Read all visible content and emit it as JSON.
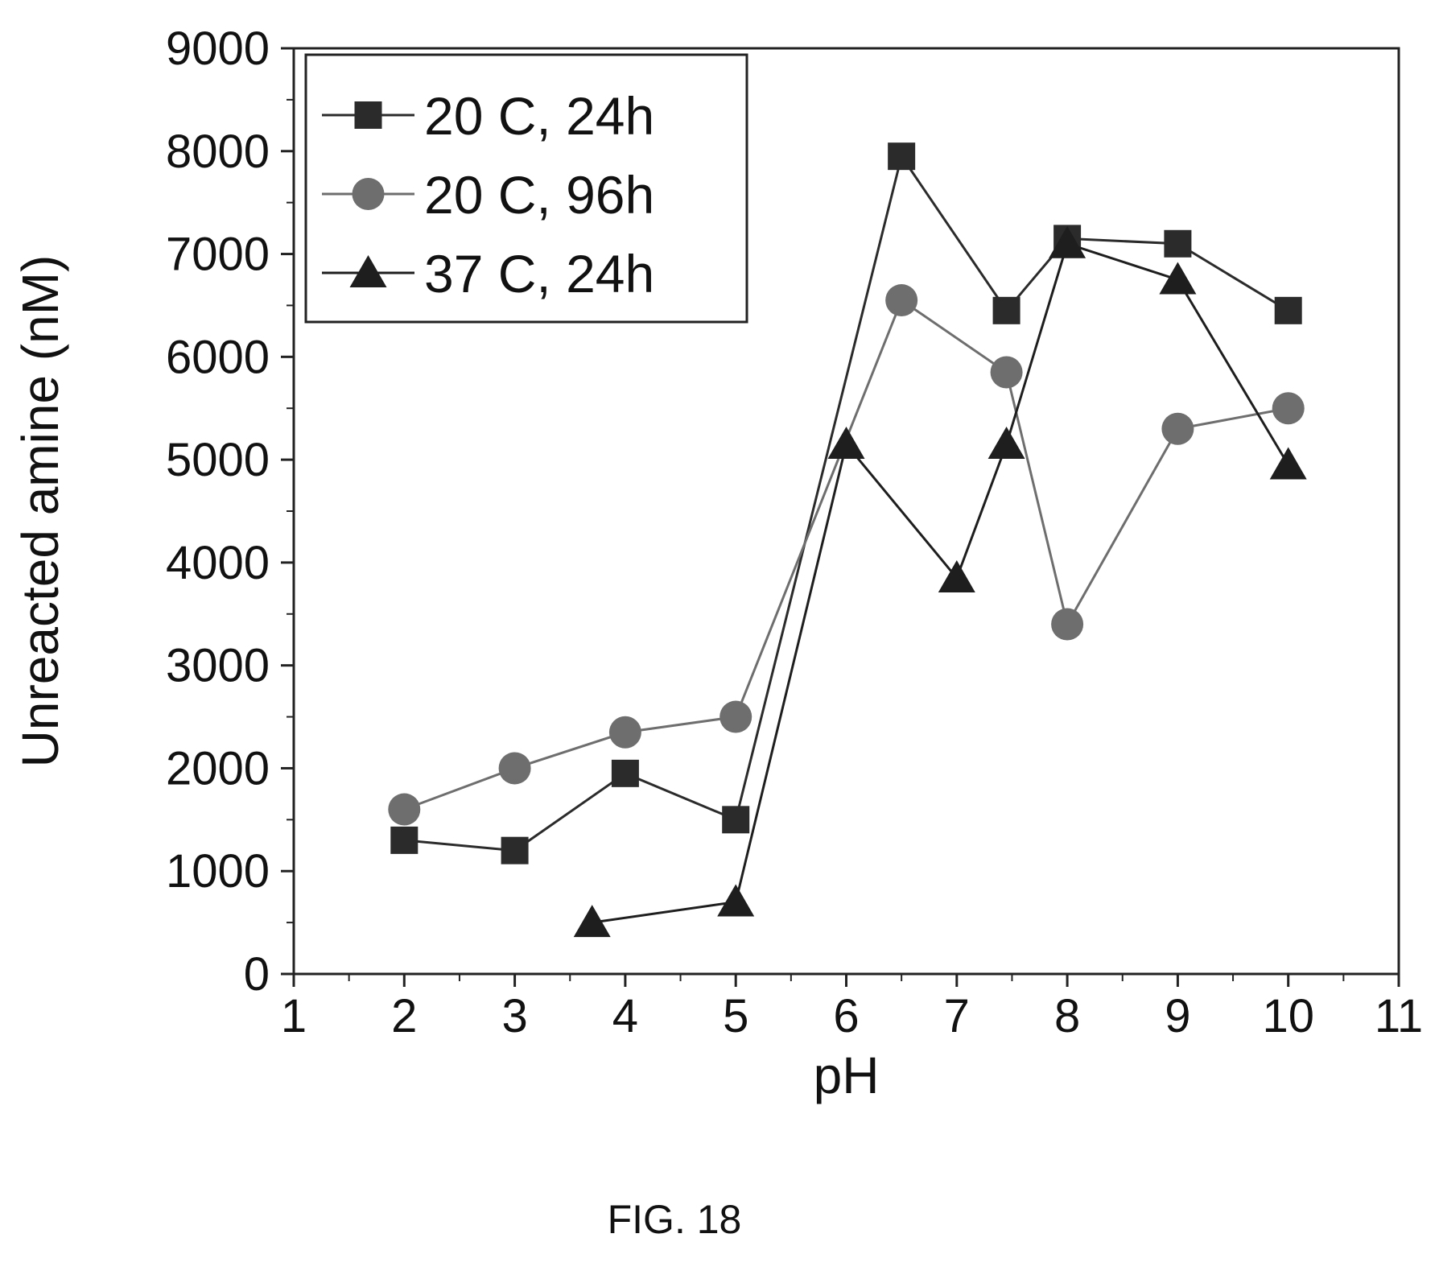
{
  "figure": {
    "caption": "FIG. 18"
  },
  "colors": {
    "series_1": "#2b2b2b",
    "series_2": "#6e6e6e",
    "series_3": "#1e1e1e",
    "axis": "#222222"
  },
  "chart_data": {
    "type": "line",
    "title": "",
    "xlabel": "pH",
    "ylabel": "Unreacted amine (nM)",
    "xlim": [
      1,
      11
    ],
    "ylim": [
      0,
      9000
    ],
    "xticks": [
      1,
      2,
      3,
      4,
      5,
      6,
      7,
      8,
      9,
      10,
      11
    ],
    "yticks": [
      0,
      1000,
      2000,
      3000,
      4000,
      5000,
      6000,
      7000,
      8000,
      9000
    ],
    "grid": false,
    "legend_position": "top-left",
    "series": [
      {
        "name": "20 C, 24h",
        "marker": "square",
        "x": [
          2,
          3,
          4,
          5,
          6.5,
          7.45,
          8,
          9,
          10
        ],
        "y": [
          1300,
          1200,
          1950,
          1500,
          7950,
          6450,
          7150,
          7100,
          6450
        ]
      },
      {
        "name": "20 C, 96h",
        "marker": "circle",
        "x": [
          2,
          3,
          4,
          5,
          6.5,
          7.45,
          8,
          9,
          10
        ],
        "y": [
          1600,
          2000,
          2350,
          2500,
          6550,
          5850,
          3400,
          5300,
          5500
        ]
      },
      {
        "name": "37 C, 24h",
        "marker": "triangle",
        "x": [
          3.7,
          5,
          6,
          7,
          7.45,
          8,
          9,
          10
        ],
        "y": [
          500,
          700,
          5150,
          3850,
          5150,
          7100,
          6750,
          4950
        ]
      }
    ]
  }
}
